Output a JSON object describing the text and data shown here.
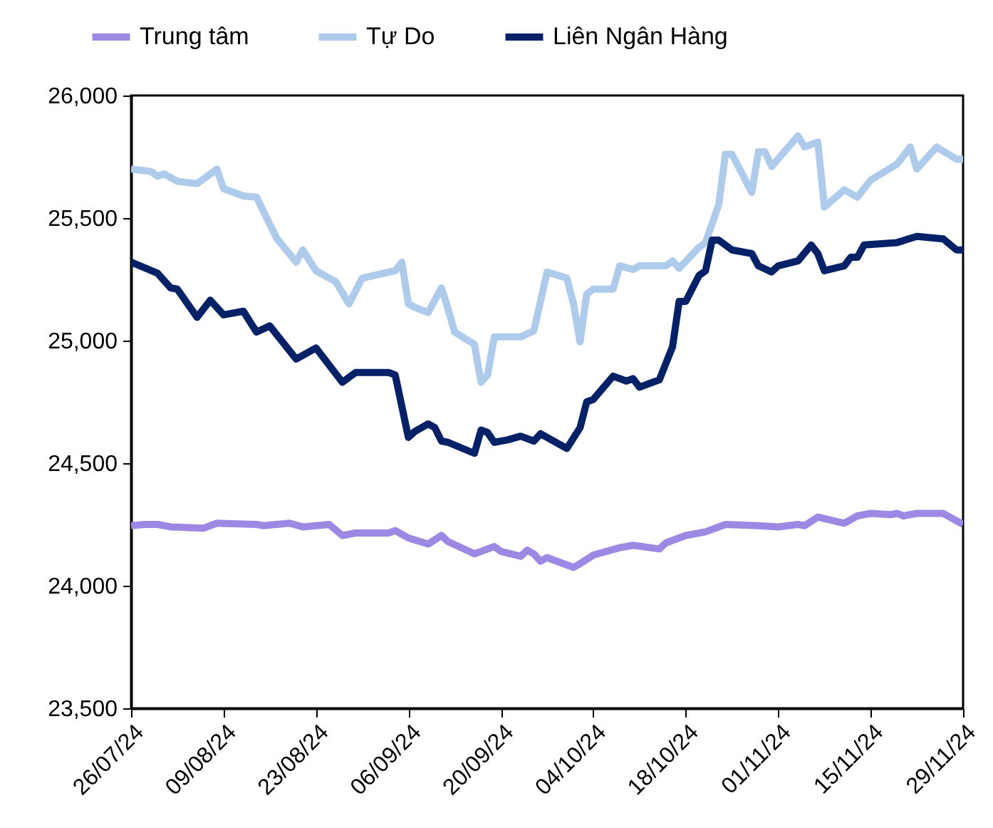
{
  "chart_data": {
    "type": "line",
    "xlim": [
      "--07-26",
      "--11-29"
    ],
    "xticks": [
      {
        "value": "--07-26",
        "label": "26/07/24"
      },
      {
        "value": "--08-09",
        "label": "09/08/24"
      },
      {
        "value": "--08-23",
        "label": "23/08/24"
      },
      {
        "value": "--09-06",
        "label": "06/09/24"
      },
      {
        "value": "--09-20",
        "label": "20/09/24"
      },
      {
        "value": "--10-04",
        "label": "04/10/24"
      },
      {
        "value": "--10-18",
        "label": "18/10/24"
      },
      {
        "value": "--11-01",
        "label": "01/11/24"
      },
      {
        "value": "--11-15",
        "label": "15/11/24"
      },
      {
        "value": "--11-29",
        "label": "29/11/24"
      }
    ],
    "ylim": [
      23500,
      26000
    ],
    "yticks": [
      {
        "value": 23500,
        "label": "23,500"
      },
      {
        "value": 24000,
        "label": "24,000"
      },
      {
        "value": 24500,
        "label": "24,500"
      },
      {
        "value": 25000,
        "label": "25,000"
      },
      {
        "value": 25500,
        "label": "25,500"
      },
      {
        "value": 26000,
        "label": "26,000"
      }
    ],
    "grid": false,
    "legend": "top",
    "marker": "none",
    "line_style": "solid",
    "series": [
      {
        "name": "Trung tâm",
        "color": "#9d88e3",
        "x": [
          "--07-26",
          "--07-28",
          "--07-30",
          "--08-01",
          "--08-06",
          "--08-08",
          "--08-14",
          "--08-15",
          "--08-19",
          "--08-21",
          "--08-25",
          "--08-27",
          "--08-29",
          "--09-03",
          "--09-04",
          "--09-06",
          "--09-09",
          "--09-11",
          "--09-12",
          "--09-16",
          "--09-17",
          "--09-19",
          "--09-20",
          "--09-23",
          "--09-24",
          "--09-25",
          "--09-26",
          "--09-27",
          "--10-01",
          "--10-02",
          "--10-04",
          "--10-08",
          "--10-10",
          "--10-14",
          "--10-15",
          "--10-18",
          "--10-21",
          "--10-24",
          "--10-29",
          "--11-01",
          "--11-04",
          "--11-05",
          "--11-07",
          "--11-11",
          "--11-13",
          "--11-15",
          "--11-18",
          "--11-19",
          "--11-20",
          "--11-22",
          "--11-26",
          "--11-29"
        ],
        "values": [
          24245,
          24250,
          24250,
          24240,
          24235,
          24255,
          24250,
          24245,
          24255,
          24240,
          24250,
          24205,
          24215,
          24215,
          24225,
          24195,
          24170,
          24205,
          24180,
          24130,
          24140,
          24160,
          24140,
          24120,
          24145,
          24130,
          24100,
          24115,
          24075,
          24090,
          24125,
          24155,
          24165,
          24150,
          24175,
          24205,
          24220,
          24250,
          24245,
          24240,
          24250,
          24245,
          24280,
          24255,
          24285,
          24295,
          24290,
          24295,
          24285,
          24295,
          24295,
          24250
        ]
      },
      {
        "name": "Tự Do",
        "color": "#aecbec",
        "x": [
          "--07-26",
          "--07-29",
          "--07-30",
          "--07-31",
          "--08-02",
          "--08-05",
          "--08-06",
          "--08-08",
          "--08-09",
          "--08-12",
          "--08-14",
          "--08-17",
          "--08-20",
          "--08-21",
          "--08-23",
          "--08-26",
          "--08-28",
          "--08-30",
          "--09-04",
          "--09-05",
          "--09-06",
          "--09-07",
          "--09-09",
          "--09-11",
          "--09-12",
          "--09-13",
          "--09-16",
          "--09-17",
          "--09-18",
          "--09-19",
          "--09-23",
          "--09-25",
          "--09-27",
          "--09-30",
          "--10-01",
          "--10-02",
          "--10-03",
          "--10-04",
          "--10-07",
          "--10-08",
          "--10-10",
          "--10-11",
          "--10-15",
          "--10-16",
          "--10-17",
          "--10-20",
          "--10-21",
          "--10-23",
          "--10-24",
          "--10-25",
          "--10-28",
          "--10-29",
          "--10-30",
          "--10-31",
          "--11-04",
          "--11-05",
          "--11-07",
          "--11-08",
          "--11-11",
          "--11-13",
          "--11-15",
          "--11-19",
          "--11-21",
          "--11-22",
          "--11-25",
          "--11-28",
          "--11-29"
        ],
        "values": [
          25700,
          25690,
          25670,
          25680,
          25650,
          25640,
          25660,
          25700,
          25620,
          25590,
          25585,
          25420,
          25320,
          25370,
          25285,
          25240,
          25150,
          25255,
          25285,
          25320,
          25150,
          25135,
          25115,
          25215,
          25130,
          25035,
          24985,
          24830,
          24860,
          25015,
          25015,
          25040,
          25280,
          25255,
          25150,
          24995,
          25190,
          25210,
          25210,
          25305,
          25290,
          25305,
          25305,
          25325,
          25295,
          25380,
          25400,
          25555,
          25760,
          25760,
          25605,
          25770,
          25770,
          25710,
          25835,
          25790,
          25810,
          25545,
          25615,
          25585,
          25655,
          25720,
          25790,
          25700,
          25790,
          25740,
          25740
        ]
      },
      {
        "name": "Liên Ngân Hàng",
        "color": "#022166",
        "x": [
          "--07-26",
          "--07-30",
          "--08-01",
          "--08-02",
          "--08-05",
          "--08-07",
          "--08-09",
          "--08-12",
          "--08-14",
          "--08-16",
          "--08-20",
          "--08-23",
          "--08-27",
          "--08-29",
          "--09-03",
          "--09-04",
          "--09-06",
          "--09-07",
          "--09-09",
          "--09-10",
          "--09-11",
          "--09-12",
          "--09-16",
          "--09-17",
          "--09-18",
          "--09-19",
          "--09-21",
          "--09-23",
          "--09-25",
          "--09-26",
          "--09-30",
          "--10-02",
          "--10-03",
          "--10-04",
          "--10-07",
          "--10-09",
          "--10-10",
          "--10-11",
          "--10-14",
          "--10-16",
          "--10-17",
          "--10-18",
          "--10-20",
          "--10-21",
          "--10-22",
          "--10-23",
          "--10-25",
          "--10-28",
          "--10-29",
          "--10-31",
          "--11-01",
          "--11-04",
          "--11-06",
          "--11-07",
          "--11-08",
          "--11-11",
          "--11-12",
          "--11-13",
          "--11-14",
          "--11-19",
          "--11-22",
          "--11-26",
          "--11-28",
          "--11-29"
        ],
        "values": [
          25320,
          25275,
          25215,
          25210,
          25095,
          25165,
          25105,
          25120,
          25035,
          25060,
          24925,
          24970,
          24830,
          24870,
          24870,
          24860,
          24605,
          24630,
          24660,
          24645,
          24590,
          24585,
          24540,
          24635,
          24625,
          24585,
          24595,
          24610,
          24590,
          24620,
          24560,
          24645,
          24750,
          24760,
          24855,
          24835,
          24845,
          24810,
          24840,
          24975,
          25160,
          25160,
          25265,
          25285,
          25410,
          25410,
          25370,
          25355,
          25305,
          25280,
          25305,
          25325,
          25390,
          25355,
          25285,
          25305,
          25340,
          25340,
          25390,
          25400,
          25425,
          25415,
          25370,
          25370
        ]
      }
    ]
  }
}
